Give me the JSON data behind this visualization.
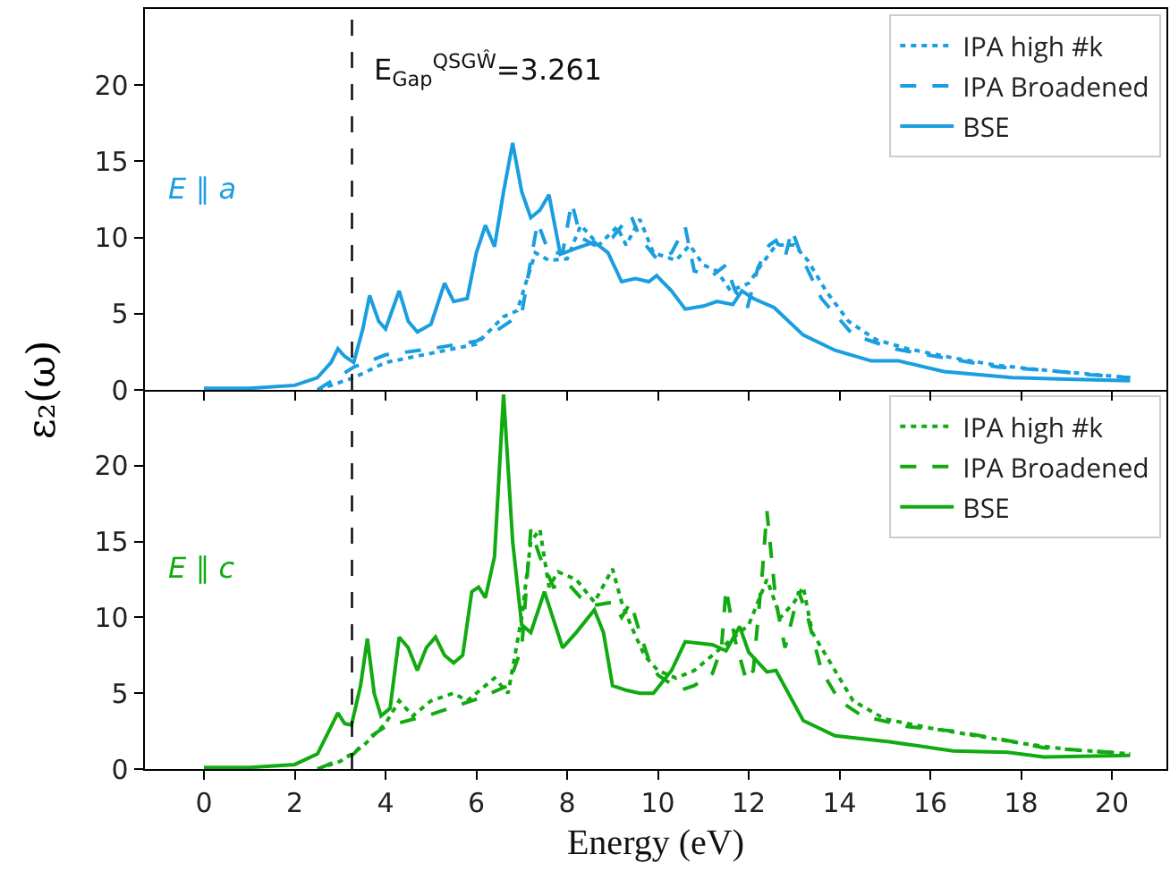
{
  "chart_data": [
    {
      "type": "line",
      "ylabel": "ε₂(ω)",
      "xlim": [
        -1.3,
        21.2
      ],
      "ylim": [
        0,
        25
      ],
      "xticks": [
        0,
        2,
        4,
        6,
        8,
        10,
        12,
        14,
        16,
        18,
        20
      ],
      "yticks": [
        0,
        5,
        10,
        15,
        20
      ],
      "tick_labels": "y",
      "legend": "top right",
      "grid": false,
      "marker": "none",
      "annotations": [
        {
          "text": "E$_{Gap}$$^{QSGŴ}$=3.261",
          "x": 3.261,
          "y": 21
        },
        "E ∥ a"
      ],
      "ref_lines": [
        {
          "axis": "x",
          "value": 3.261,
          "color": "#000000",
          "line_style": "dashed"
        }
      ],
      "series": [
        {
          "name": "IPA high #k",
          "color": "#1a9ee0",
          "line_style": "dotted",
          "x": [
            2.5,
            3.3,
            4,
            5,
            6,
            6.6,
            6.9,
            7.3,
            7.6,
            8.0,
            8.3,
            8.7,
            9.1,
            9.3,
            9.6,
            9.9,
            10.4,
            10.7,
            11.0,
            11.3,
            11.6,
            12.0,
            12.3,
            12.6,
            13.0,
            13.3,
            13.7,
            14.2,
            14.8,
            15.5,
            16.5,
            17.5,
            18.5,
            20.4
          ],
          "values": [
            0,
            0.8,
            1.8,
            2.4,
            3.0,
            4.8,
            5.2,
            9,
            8.5,
            8.6,
            10.8,
            9.5,
            10.7,
            9.5,
            11.2,
            9,
            8.5,
            9.5,
            8.2,
            7.8,
            6.5,
            7.0,
            8.3,
            9.5,
            9.5,
            8.5,
            6.5,
            4.5,
            3.3,
            2.7,
            2.1,
            1.6,
            1.3,
            0.8
          ]
        },
        {
          "name": "IPA Broadened",
          "color": "#1a9ee0",
          "line_style": "dashed",
          "x": [
            2.5,
            3.3,
            4,
            5,
            6,
            6.5,
            7.0,
            7.2,
            7.35,
            7.6,
            7.9,
            8.1,
            8.3,
            8.6,
            9.0,
            9.4,
            9.6,
            10.0,
            10.3,
            10.6,
            10.8,
            11.2,
            11.5,
            11.7,
            11.97,
            12.2,
            12.45,
            12.6,
            12.8,
            12.95,
            13.2,
            13.6,
            14.3,
            15.2,
            16.5,
            17.5,
            18.5,
            19.5,
            20.4
          ],
          "values": [
            0,
            1.5,
            2.3,
            2.7,
            3.2,
            4.0,
            5.0,
            8.5,
            11,
            9,
            9,
            12.3,
            10,
            9.5,
            10.0,
            11.5,
            10,
            8.5,
            9,
            10.7,
            7.8,
            7.5,
            8.2,
            6.5,
            5.4,
            8,
            9.5,
            9.8,
            8.7,
            10.5,
            8.5,
            6,
            3.6,
            2.7,
            2.0,
            1.5,
            1.3,
            1.0,
            0.8
          ]
        },
        {
          "name": "BSE",
          "color": "#1a9ee0",
          "line_style": "solid",
          "x": [
            0,
            1,
            2,
            2.5,
            2.8,
            2.95,
            3.1,
            3.3,
            3.5,
            3.65,
            3.85,
            4.0,
            4.3,
            4.5,
            4.7,
            5.0,
            5.3,
            5.5,
            5.8,
            6.0,
            6.2,
            6.4,
            6.6,
            6.8,
            7.0,
            7.2,
            7.4,
            7.6,
            7.85,
            8.2,
            8.6,
            8.9,
            9.2,
            9.5,
            9.8,
            9.97,
            10.3,
            10.6,
            11.0,
            11.3,
            11.65,
            11.85,
            12.1,
            12.56,
            13.2,
            13.9,
            14.7,
            15.3,
            16.3,
            17.8,
            19.0,
            20.4
          ],
          "values": [
            0.1,
            0.1,
            0.3,
            0.8,
            1.8,
            2.7,
            2.2,
            1.8,
            4,
            6.2,
            4.5,
            4.0,
            6.5,
            4.5,
            3.8,
            4.3,
            7.0,
            5.8,
            6.0,
            9.0,
            10.8,
            9.4,
            13,
            16.2,
            13,
            11.3,
            11.8,
            12.8,
            8.9,
            9.3,
            9.7,
            9.0,
            7.1,
            7.3,
            7.1,
            7.5,
            6.5,
            5.3,
            5.5,
            5.8,
            5.6,
            6.5,
            6.0,
            5.4,
            3.6,
            2.6,
            1.9,
            1.9,
            1.2,
            0.8,
            0.7,
            0.6
          ]
        }
      ]
    },
    {
      "type": "line",
      "xlabel": "Energy (eV)",
      "xlim": [
        -1.3,
        21.2
      ],
      "ylim": [
        0,
        25
      ],
      "xticks": [
        0,
        2,
        4,
        6,
        8,
        10,
        12,
        14,
        16,
        18,
        20
      ],
      "yticks": [
        0,
        5,
        10,
        15,
        20
      ],
      "legend": "top right",
      "grid": false,
      "marker": "none",
      "annotations": [
        "E ∥ c"
      ],
      "ref_lines": [
        {
          "axis": "x",
          "value": 3.261,
          "color": "#000000",
          "line_style": "dashed"
        }
      ],
      "series": [
        {
          "name": "IPA high #k",
          "color": "#11aa11",
          "line_style": "dotted",
          "x": [
            2.5,
            3.0,
            3.5,
            4,
            4.3,
            4.6,
            5,
            5.5,
            5.8,
            6.4,
            6.7,
            7.0,
            7.2,
            7.4,
            7.6,
            7.8,
            8.2,
            8.6,
            9.0,
            9.2,
            9.4,
            9.7,
            10,
            10.4,
            10.8,
            11.2,
            11.6,
            12.0,
            12.4,
            12.7,
            13.0,
            13.2,
            13.4,
            13.8,
            14.3,
            15,
            16,
            17,
            18,
            19,
            20.4
          ],
          "values": [
            0,
            0.5,
            1.5,
            3.0,
            4.5,
            3.5,
            4.5,
            5.0,
            4.5,
            6.0,
            5.0,
            10,
            15,
            15.8,
            12,
            13,
            12.5,
            11,
            13.2,
            11,
            9.5,
            7.5,
            6.5,
            6.0,
            6.5,
            7.5,
            8.5,
            9.5,
            12.5,
            10,
            11,
            12,
            9,
            7,
            4.5,
            3.3,
            2.7,
            2.2,
            1.7,
            1.3,
            1.0
          ]
        },
        {
          "name": "IPA Broadened",
          "color": "#11aa11",
          "line_style": "dashed",
          "x": [
            2.5,
            3.3,
            3.6,
            4,
            5,
            6,
            6.7,
            7.0,
            7.2,
            7.4,
            7.7,
            8.0,
            8.3,
            8.6,
            9.0,
            9.2,
            9.4,
            9.6,
            9.8,
            10.0,
            10.5,
            10.8,
            11.2,
            11.4,
            11.5,
            11.7,
            11.95,
            12.1,
            12.3,
            12.4,
            12.6,
            12.8,
            13.1,
            13.3,
            13.6,
            14.0,
            14.5,
            15.5,
            16.5,
            17.5,
            18.5,
            19.5,
            20.4
          ],
          "values": [
            0,
            1.0,
            2.0,
            2.8,
            3.6,
            4.6,
            5.5,
            8,
            15.8,
            14,
            12,
            12.3,
            11.3,
            10.8,
            11.0,
            10,
            11,
            9,
            7.2,
            6.2,
            5.2,
            5.5,
            6.3,
            8,
            11.9,
            8.5,
            5.8,
            6.5,
            13,
            17,
            11,
            8.0,
            11.7,
            10,
            6.5,
            4.5,
            3.5,
            2.8,
            2.5,
            2.0,
            1.4,
            1.2,
            1.0
          ]
        },
        {
          "name": "BSE",
          "color": "#11aa11",
          "line_style": "solid",
          "x": [
            0,
            1,
            2,
            2.5,
            2.8,
            2.95,
            3.1,
            3.25,
            3.45,
            3.6,
            3.75,
            3.9,
            4.1,
            4.3,
            4.5,
            4.7,
            4.9,
            5.1,
            5.3,
            5.5,
            5.7,
            5.9,
            6.05,
            6.2,
            6.4,
            6.6,
            6.8,
            7.0,
            7.2,
            7.5,
            7.9,
            8.2,
            8.6,
            8.8,
            9.0,
            9.3,
            9.6,
            9.9,
            10.3,
            10.6,
            11.2,
            11.5,
            11.8,
            12.0,
            12.4,
            12.6,
            13.2,
            13.9,
            15.1,
            16.5,
            17.7,
            18.5,
            20.4
          ],
          "values": [
            0.1,
            0.1,
            0.3,
            1.0,
            2.8,
            3.7,
            3.0,
            2.9,
            5.5,
            8.6,
            5,
            3.5,
            4,
            8.7,
            8.0,
            6.5,
            8.0,
            8.7,
            7.5,
            7.0,
            7.5,
            11.7,
            12,
            11.3,
            14,
            24.7,
            15,
            9.5,
            9.0,
            11.7,
            8.0,
            9.0,
            10.5,
            9,
            5.5,
            5.2,
            5.0,
            5.0,
            6.5,
            8.4,
            8.2,
            7.8,
            9.4,
            7.7,
            6.4,
            6.5,
            3.2,
            2.2,
            1.8,
            1.2,
            1.1,
            0.8,
            0.9
          ]
        }
      ]
    }
  ]
}
